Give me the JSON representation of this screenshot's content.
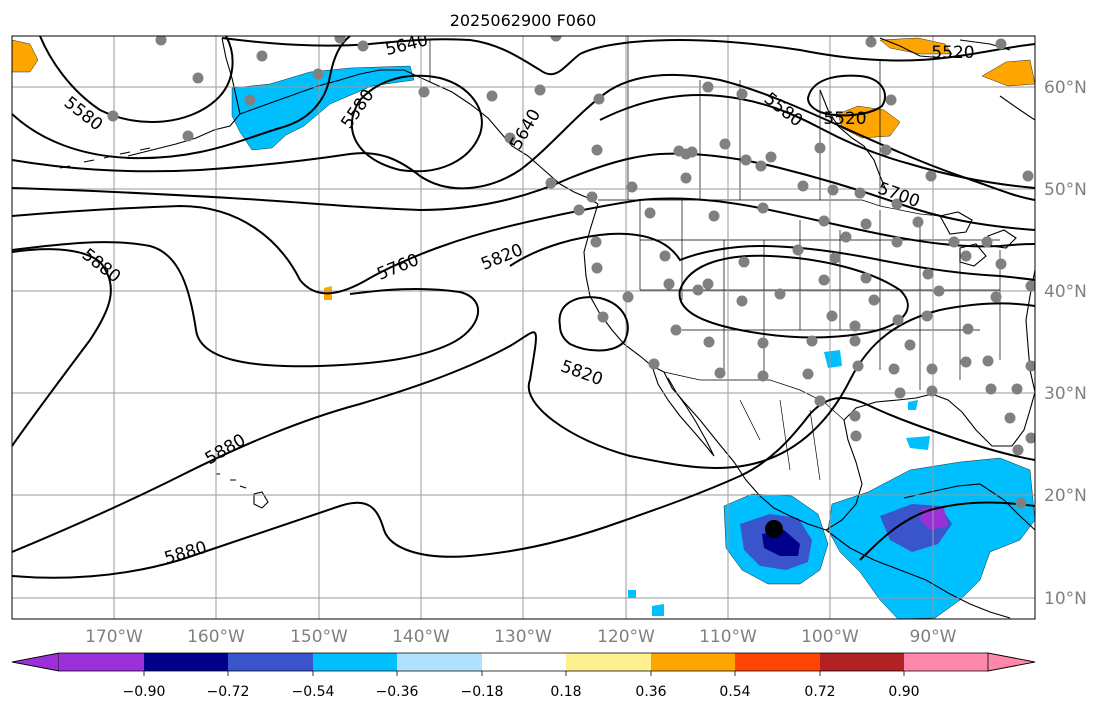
{
  "title": "2025062900 F060",
  "colors": {
    "neg_090": "#9b30d9",
    "neg_072": "#00008b",
    "neg_054": "#3a55cc",
    "neg_036": "#00bfff",
    "neg_018": "#b0e2ff",
    "neutral": "#ffffff",
    "pos_018": "#fff08f",
    "pos_036": "#ffa500",
    "pos_054": "#ff4500",
    "pos_072": "#b22222",
    "pos_090": "#ff88aa",
    "grid": "#9a9a9a",
    "station": "#808080"
  },
  "lon_labels": [
    "170°W",
    "160°W",
    "150°W",
    "140°W",
    "130°W",
    "120°W",
    "110°W",
    "100°W",
    "90°W"
  ],
  "lat_labels": [
    "60°N",
    "50°N",
    "40°N",
    "30°N",
    "20°N",
    "10°N"
  ],
  "contour_labels": [
    "5640",
    "5580",
    "5580",
    "5640",
    "5580",
    "5520",
    "5520",
    "5700",
    "5880",
    "5760",
    "5820",
    "5820",
    "5880",
    "5880"
  ],
  "colorbar": {
    "ticks": [
      "−0.90",
      "−0.72",
      "−0.54",
      "−0.36",
      "−0.18",
      "0.18",
      "0.36",
      "0.54",
      "0.72",
      "0.90"
    ]
  }
}
